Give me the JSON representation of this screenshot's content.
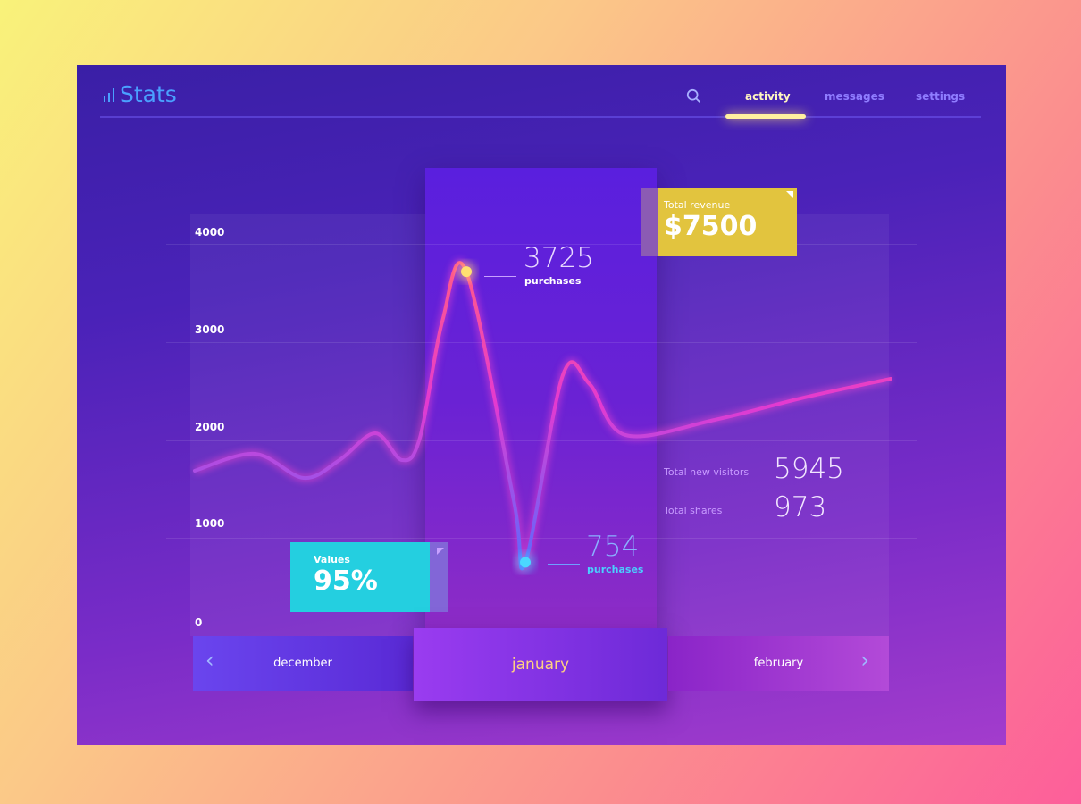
{
  "header": {
    "logo_text": "Stats",
    "logo_icon": "bar-chart-icon",
    "search_icon": "search-icon",
    "tabs": [
      {
        "label": "activity",
        "active": true
      },
      {
        "label": "messages",
        "active": false
      },
      {
        "label": "settings",
        "active": false
      }
    ]
  },
  "cards": {
    "revenue": {
      "label": "Total revenue",
      "value": "$7500",
      "color": "#e2c43e"
    },
    "values": {
      "label": "Values",
      "value": "95%",
      "color": "#24cfe0"
    }
  },
  "stats": [
    {
      "label": "Total new visitors",
      "value": "5945"
    },
    {
      "label": "Total shares",
      "value": "973"
    }
  ],
  "months": {
    "prev": "december",
    "current": "january",
    "next": "february",
    "prev_icon": "chevron-left-icon",
    "next_icon": "chevron-right-icon"
  },
  "chart_data": {
    "type": "line",
    "yticks": [
      "4000",
      "3000",
      "2000",
      "1000",
      "0"
    ],
    "ylim": [
      0,
      4000
    ],
    "grid": true,
    "series": [
      {
        "values": [
          1690,
          1863,
          1616,
          1799,
          2073,
          1799,
          2027,
          3215,
          3725,
          1388,
          754,
          2667,
          2575,
          2055,
          2210,
          2438,
          2630
        ]
      }
    ],
    "annotations": [
      {
        "value": "3725",
        "label": "purchases",
        "color": "#ffe070"
      },
      {
        "value": "754",
        "label": "purchases",
        "color": "#4ad8ff"
      }
    ]
  }
}
